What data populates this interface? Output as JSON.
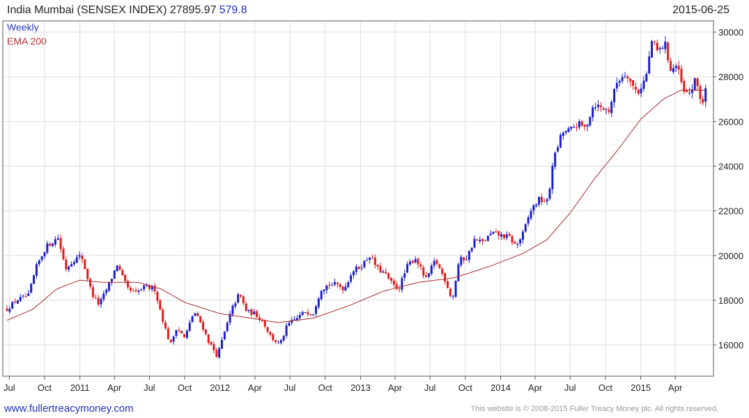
{
  "header": {
    "title": "India Mumbai (SENSEX INDEX)",
    "last_value": "27895.97",
    "change": "579.8",
    "date": "2015-06-25"
  },
  "legend": {
    "series_label": "Weekly",
    "ema_label": "EMA 200"
  },
  "footer": {
    "url": "www.fullertreacymoney.com",
    "copyright": "This website is © 2008-2015 Fuller Treacy Money plc. All rights reserved."
  },
  "colors": {
    "up": "#1a1fc8",
    "down": "#e01b1b",
    "ema": "#a62a2a",
    "grid": "#dddddd",
    "axis": "#555555"
  },
  "chart_data": {
    "type": "candlestick",
    "title": "India Mumbai (SENSEX INDEX)",
    "frequency": "Weekly",
    "x_start": "2010-06-25",
    "x_end": "2015-06-25",
    "ylim": [
      14600,
      30500
    ],
    "y_ticks": [
      16000,
      18000,
      20000,
      22000,
      24000,
      26000,
      28000,
      30000
    ],
    "x_ticks": [
      {
        "label": "Jul",
        "date": "2010-07-01"
      },
      {
        "label": "Oct",
        "date": "2010-10-01"
      },
      {
        "label": "2011",
        "date": "2011-01-01"
      },
      {
        "label": "Apr",
        "date": "2011-04-01"
      },
      {
        "label": "Jul",
        "date": "2011-07-01"
      },
      {
        "label": "Oct",
        "date": "2011-10-01"
      },
      {
        "label": "2012",
        "date": "2012-01-01"
      },
      {
        "label": "Apr",
        "date": "2012-04-01"
      },
      {
        "label": "Jul",
        "date": "2012-07-01"
      },
      {
        "label": "Oct",
        "date": "2012-10-01"
      },
      {
        "label": "2013",
        "date": "2013-01-01"
      },
      {
        "label": "Apr",
        "date": "2013-04-01"
      },
      {
        "label": "Jul",
        "date": "2013-07-01"
      },
      {
        "label": "Oct",
        "date": "2013-10-01"
      },
      {
        "label": "2014",
        "date": "2014-01-01"
      },
      {
        "label": "Apr",
        "date": "2014-04-01"
      },
      {
        "label": "Jul",
        "date": "2014-07-01"
      },
      {
        "label": "Oct",
        "date": "2014-10-01"
      },
      {
        "label": "2015",
        "date": "2015-01-01"
      },
      {
        "label": "Apr",
        "date": "2015-04-01"
      }
    ],
    "price_anchors": [
      [
        "2010-06-25",
        17600
      ],
      [
        "2010-07-20",
        18000
      ],
      [
        "2010-08-20",
        18200
      ],
      [
        "2010-09-10",
        19500
      ],
      [
        "2010-10-05",
        20400
      ],
      [
        "2010-11-05",
        20800
      ],
      [
        "2010-11-25",
        19400
      ],
      [
        "2010-12-15",
        19800
      ],
      [
        "2011-01-05",
        20000
      ],
      [
        "2011-02-01",
        18300
      ],
      [
        "2011-02-20",
        17800
      ],
      [
        "2011-03-15",
        18600
      ],
      [
        "2011-04-08",
        19600
      ],
      [
        "2011-05-05",
        18500
      ],
      [
        "2011-05-25",
        18300
      ],
      [
        "2011-06-20",
        18600
      ],
      [
        "2011-07-15",
        18500
      ],
      [
        "2011-08-10",
        16800
      ],
      [
        "2011-08-25",
        16000
      ],
      [
        "2011-09-10",
        16800
      ],
      [
        "2011-10-01",
        16300
      ],
      [
        "2011-10-25",
        17500
      ],
      [
        "2011-11-15",
        16900
      ],
      [
        "2011-12-01",
        16200
      ],
      [
        "2011-12-25",
        15500
      ],
      [
        "2012-01-10",
        16400
      ],
      [
        "2012-02-01",
        17600
      ],
      [
        "2012-02-20",
        18300
      ],
      [
        "2012-03-10",
        17500
      ],
      [
        "2012-04-01",
        17400
      ],
      [
        "2012-04-20",
        17100
      ],
      [
        "2012-05-15",
        16300
      ],
      [
        "2012-06-05",
        16000
      ],
      [
        "2012-06-25",
        16900
      ],
      [
        "2012-07-20",
        17200
      ],
      [
        "2012-08-10",
        17500
      ],
      [
        "2012-08-30",
        17400
      ],
      [
        "2012-09-20",
        18500
      ],
      [
        "2012-10-10",
        18700
      ],
      [
        "2012-11-01",
        18700
      ],
      [
        "2012-11-20",
        18500
      ],
      [
        "2012-12-10",
        19300
      ],
      [
        "2013-01-01",
        19500
      ],
      [
        "2013-01-25",
        20000
      ],
      [
        "2013-02-15",
        19400
      ],
      [
        "2013-03-05",
        19200
      ],
      [
        "2013-03-25",
        18700
      ],
      [
        "2013-04-10",
        18500
      ],
      [
        "2013-05-05",
        19600
      ],
      [
        "2013-05-25",
        19900
      ],
      [
        "2013-06-20",
        18900
      ],
      [
        "2013-07-15",
        19800
      ],
      [
        "2013-08-10",
        18900
      ],
      [
        "2013-08-28",
        18000
      ],
      [
        "2013-09-15",
        19800
      ],
      [
        "2013-10-05",
        19900
      ],
      [
        "2013-10-25",
        20700
      ],
      [
        "2013-11-15",
        20600
      ],
      [
        "2013-12-10",
        21000
      ],
      [
        "2014-01-01",
        20900
      ],
      [
        "2014-01-25",
        20800
      ],
      [
        "2014-02-10",
        20400
      ],
      [
        "2014-03-01",
        21000
      ],
      [
        "2014-03-20",
        22000
      ],
      [
        "2014-04-10",
        22500
      ],
      [
        "2014-05-05",
        22400
      ],
      [
        "2014-05-16",
        24100
      ],
      [
        "2014-06-10",
        25500
      ],
      [
        "2014-07-01",
        25600
      ],
      [
        "2014-07-20",
        25900
      ],
      [
        "2014-08-10",
        25700
      ],
      [
        "2014-09-01",
        26800
      ],
      [
        "2014-09-20",
        26600
      ],
      [
        "2014-10-10",
        26500
      ],
      [
        "2014-11-01",
        27800
      ],
      [
        "2014-11-25",
        28200
      ],
      [
        "2014-12-10",
        27600
      ],
      [
        "2014-12-25",
        27300
      ],
      [
        "2015-01-15",
        28000
      ],
      [
        "2015-01-30",
        29600
      ],
      [
        "2015-02-15",
        29100
      ],
      [
        "2015-03-05",
        29500
      ],
      [
        "2015-03-20",
        28300
      ],
      [
        "2015-04-05",
        28500
      ],
      [
        "2015-04-25",
        27200
      ],
      [
        "2015-05-10",
        27300
      ],
      [
        "2015-05-25",
        27900
      ],
      [
        "2015-06-10",
        26700
      ],
      [
        "2015-06-25",
        27896
      ]
    ],
    "ema200_anchors": [
      [
        "2010-06-25",
        17100
      ],
      [
        "2010-09-01",
        17600
      ],
      [
        "2010-11-01",
        18500
      ],
      [
        "2011-01-01",
        18900
      ],
      [
        "2011-03-01",
        18800
      ],
      [
        "2011-06-01",
        18800
      ],
      [
        "2011-08-01",
        18500
      ],
      [
        "2011-10-01",
        17900
      ],
      [
        "2012-01-01",
        17400
      ],
      [
        "2012-03-01",
        17250
      ],
      [
        "2012-06-01",
        17000
      ],
      [
        "2012-09-01",
        17200
      ],
      [
        "2012-12-01",
        17750
      ],
      [
        "2013-03-01",
        18400
      ],
      [
        "2013-06-01",
        18800
      ],
      [
        "2013-09-01",
        19000
      ],
      [
        "2013-12-01",
        19500
      ],
      [
        "2014-03-01",
        20100
      ],
      [
        "2014-05-01",
        20700
      ],
      [
        "2014-07-01",
        21900
      ],
      [
        "2014-09-01",
        23400
      ],
      [
        "2014-11-01",
        24700
      ],
      [
        "2015-01-01",
        26100
      ],
      [
        "2015-03-01",
        27000
      ],
      [
        "2015-04-15",
        27400
      ],
      [
        "2015-06-25",
        27400
      ]
    ]
  }
}
